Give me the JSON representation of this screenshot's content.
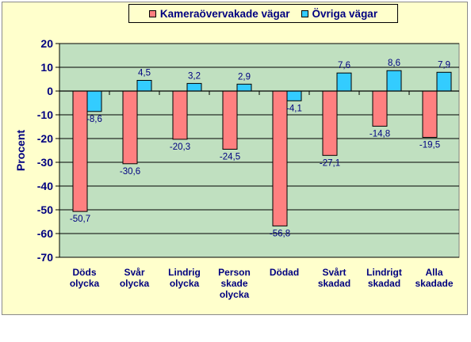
{
  "chart_data": {
    "type": "bar",
    "title": "",
    "ylabel": "Procent",
    "xlabel": "",
    "ylim": [
      -70,
      20
    ],
    "yticks": [
      20,
      10,
      0,
      -10,
      -20,
      -30,
      -40,
      -50,
      -60,
      -70
    ],
    "grid": true,
    "legend_position": "top",
    "categories": [
      [
        "Döds",
        "olycka"
      ],
      [
        "Svår",
        "olycka"
      ],
      [
        "Lindrig",
        "olycka"
      ],
      [
        "Person",
        "skade",
        "olycka"
      ],
      [
        "Dödad"
      ],
      [
        "Svårt",
        "skadad"
      ],
      [
        "Lindrigt",
        "skadad"
      ],
      [
        "Alla",
        "skadade"
      ]
    ],
    "series": [
      {
        "name": "Kameraövervakade vägar",
        "color": "#ff8080",
        "values": [
          -50.7,
          -30.6,
          -20.3,
          -24.5,
          -56.8,
          -27.1,
          -14.8,
          -19.5
        ],
        "labels": [
          "-50,7",
          "-30,6",
          "-20,3",
          "-24,5",
          "-56,8",
          "-27,1",
          "-14,8",
          "-19,5"
        ]
      },
      {
        "name": "Övriga vägar",
        "color": "#33ccff",
        "values": [
          -8.6,
          4.5,
          3.2,
          2.9,
          -4.1,
          7.6,
          8.6,
          7.9
        ],
        "labels": [
          "-8,6",
          "4,5",
          "3,2",
          "2,9",
          "-4,1",
          "7,6",
          "8,6",
          "7,9"
        ]
      }
    ],
    "colors": {
      "plot_bg": "#c0e0c0",
      "frame_bg": "#ffffcc",
      "text": "#000080",
      "grid": "#000000"
    }
  }
}
